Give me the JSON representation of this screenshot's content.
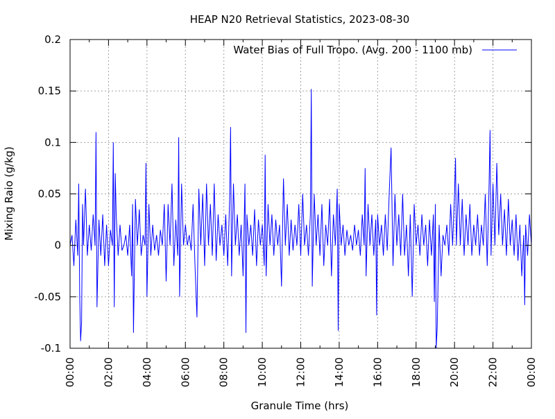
{
  "chart_data": {
    "type": "line",
    "title": "HEAP N20 Retrieval Statistics, 2023-08-30",
    "xlabel": "Granule Time (hrs)",
    "ylabel": "Mixing Raio (g/kg)",
    "xlim": [
      0,
      24
    ],
    "ylim": [
      -0.1,
      0.2
    ],
    "x_ticks": [
      {
        "value": 0,
        "label": "00:00"
      },
      {
        "value": 2,
        "label": "02:00"
      },
      {
        "value": 4,
        "label": "04:00"
      },
      {
        "value": 6,
        "label": "06:00"
      },
      {
        "value": 8,
        "label": "08:00"
      },
      {
        "value": 10,
        "label": "10:00"
      },
      {
        "value": 12,
        "label": "12:00"
      },
      {
        "value": 14,
        "label": "14:00"
      },
      {
        "value": 16,
        "label": "16:00"
      },
      {
        "value": 18,
        "label": "18:00"
      },
      {
        "value": 20,
        "label": "20:00"
      },
      {
        "value": 22,
        "label": "22:00"
      },
      {
        "value": 24,
        "label": "00:00"
      }
    ],
    "y_ticks": [
      {
        "value": -0.1,
        "label": "-0.1"
      },
      {
        "value": -0.05,
        "label": "-0.05"
      },
      {
        "value": 0,
        "label": "0"
      },
      {
        "value": 0.05,
        "label": "0.05"
      },
      {
        "value": 0.1,
        "label": "0.1"
      },
      {
        "value": 0.15,
        "label": "0.15"
      },
      {
        "value": 0.2,
        "label": "0.2"
      }
    ],
    "grid": true,
    "legend_position": "top-right",
    "series": [
      {
        "name": "Water Bias of Full Tropo. (Avg. 200 - 1100 mb)",
        "color": "#0000ff",
        "points": [
          [
            0.0,
            0.0
          ],
          [
            0.1,
            0.01
          ],
          [
            0.2,
            -0.02
          ],
          [
            0.3,
            0.025
          ],
          [
            0.4,
            -0.01
          ],
          [
            0.45,
            0.06
          ],
          [
            0.5,
            -0.05
          ],
          [
            0.55,
            -0.093
          ],
          [
            0.6,
            -0.075
          ],
          [
            0.65,
            0.04
          ],
          [
            0.7,
            0.0
          ],
          [
            0.8,
            0.055
          ],
          [
            0.9,
            -0.01
          ],
          [
            1.0,
            0.02
          ],
          [
            1.1,
            -0.005
          ],
          [
            1.2,
            0.03
          ],
          [
            1.3,
            0.0
          ],
          [
            1.35,
            0.11
          ],
          [
            1.4,
            -0.06
          ],
          [
            1.5,
            0.025
          ],
          [
            1.6,
            -0.01
          ],
          [
            1.7,
            0.03
          ],
          [
            1.8,
            -0.02
          ],
          [
            1.9,
            0.02
          ],
          [
            2.0,
            -0.02
          ],
          [
            2.1,
            0.015
          ],
          [
            2.2,
            0.0
          ],
          [
            2.25,
            0.1
          ],
          [
            2.3,
            -0.06
          ],
          [
            2.35,
            0.07
          ],
          [
            2.4,
            0.03
          ],
          [
            2.5,
            -0.01
          ],
          [
            2.6,
            0.02
          ],
          [
            2.7,
            -0.005
          ],
          [
            2.8,
            0.0
          ],
          [
            2.9,
            0.01
          ],
          [
            3.0,
            -0.01
          ],
          [
            3.1,
            0.02
          ],
          [
            3.2,
            -0.03
          ],
          [
            3.25,
            0.04
          ],
          [
            3.3,
            -0.085
          ],
          [
            3.4,
            0.045
          ],
          [
            3.5,
            0.0
          ],
          [
            3.6,
            0.035
          ],
          [
            3.7,
            -0.01
          ],
          [
            3.8,
            0.01
          ],
          [
            3.9,
            0.0
          ],
          [
            3.95,
            0.08
          ],
          [
            4.0,
            -0.05
          ],
          [
            4.1,
            0.04
          ],
          [
            4.2,
            -0.01
          ],
          [
            4.3,
            0.02
          ],
          [
            4.4,
            -0.005
          ],
          [
            4.5,
            0.01
          ],
          [
            4.6,
            -0.01
          ],
          [
            4.7,
            0.015
          ],
          [
            4.8,
            0.0
          ],
          [
            4.9,
            0.04
          ],
          [
            5.0,
            -0.035
          ],
          [
            5.1,
            0.04
          ],
          [
            5.2,
            0.0
          ],
          [
            5.3,
            0.06
          ],
          [
            5.4,
            -0.02
          ],
          [
            5.5,
            0.025
          ],
          [
            5.6,
            -0.01
          ],
          [
            5.65,
            0.105
          ],
          [
            5.7,
            -0.05
          ],
          [
            5.8,
            0.06
          ],
          [
            5.9,
            0.0
          ],
          [
            6.0,
            0.02
          ],
          [
            6.1,
            0.0
          ],
          [
            6.2,
            0.01
          ],
          [
            6.3,
            -0.005
          ],
          [
            6.4,
            0.04
          ],
          [
            6.5,
            -0.02
          ],
          [
            6.6,
            -0.07
          ],
          [
            6.7,
            0.055
          ],
          [
            6.8,
            0.0
          ],
          [
            6.9,
            0.05
          ],
          [
            7.0,
            -0.02
          ],
          [
            7.1,
            0.06
          ],
          [
            7.2,
            0.0
          ],
          [
            7.3,
            0.04
          ],
          [
            7.4,
            -0.01
          ],
          [
            7.5,
            0.06
          ],
          [
            7.6,
            -0.015
          ],
          [
            7.7,
            0.03
          ],
          [
            7.8,
            0.0
          ],
          [
            7.9,
            0.02
          ],
          [
            8.0,
            -0.01
          ],
          [
            8.1,
            0.03
          ],
          [
            8.2,
            -0.02
          ],
          [
            8.3,
            0.045
          ],
          [
            8.35,
            0.115
          ],
          [
            8.4,
            -0.03
          ],
          [
            8.5,
            0.06
          ],
          [
            8.6,
            0.0
          ],
          [
            8.7,
            0.03
          ],
          [
            8.8,
            -0.01
          ],
          [
            8.9,
            0.02
          ],
          [
            9.0,
            -0.03
          ],
          [
            9.1,
            0.06
          ],
          [
            9.15,
            -0.085
          ],
          [
            9.2,
            0.03
          ],
          [
            9.3,
            0.0
          ],
          [
            9.4,
            0.02
          ],
          [
            9.5,
            -0.01
          ],
          [
            9.6,
            0.035
          ],
          [
            9.7,
            -0.02
          ],
          [
            9.8,
            0.025
          ],
          [
            9.9,
            0.0
          ],
          [
            10.0,
            0.02
          ],
          [
            10.1,
            -0.02
          ],
          [
            10.15,
            0.088
          ],
          [
            10.2,
            -0.03
          ],
          [
            10.3,
            0.04
          ],
          [
            10.4,
            0.0
          ],
          [
            10.5,
            0.03
          ],
          [
            10.6,
            -0.01
          ],
          [
            10.7,
            0.025
          ],
          [
            10.8,
            0.0
          ],
          [
            10.9,
            0.02
          ],
          [
            11.0,
            -0.04
          ],
          [
            11.1,
            0.065
          ],
          [
            11.2,
            0.0
          ],
          [
            11.3,
            0.04
          ],
          [
            11.4,
            -0.01
          ],
          [
            11.5,
            0.025
          ],
          [
            11.6,
            -0.005
          ],
          [
            11.7,
            0.02
          ],
          [
            11.8,
            0.0
          ],
          [
            11.9,
            0.04
          ],
          [
            12.0,
            -0.01
          ],
          [
            12.1,
            0.05
          ],
          [
            12.2,
            0.0
          ],
          [
            12.3,
            0.02
          ],
          [
            12.4,
            -0.01
          ],
          [
            12.5,
            0.03
          ],
          [
            12.55,
            0.152
          ],
          [
            12.6,
            -0.04
          ],
          [
            12.7,
            0.05
          ],
          [
            12.8,
            0.0
          ],
          [
            12.9,
            0.03
          ],
          [
            13.0,
            -0.01
          ],
          [
            13.1,
            0.04
          ],
          [
            13.2,
            -0.02
          ],
          [
            13.3,
            0.02
          ],
          [
            13.4,
            0.0
          ],
          [
            13.5,
            0.045
          ],
          [
            13.6,
            -0.03
          ],
          [
            13.7,
            0.03
          ],
          [
            13.8,
            0.0
          ],
          [
            13.9,
            0.055
          ],
          [
            13.95,
            -0.083
          ],
          [
            14.0,
            0.04
          ],
          [
            14.1,
            0.0
          ],
          [
            14.2,
            0.02
          ],
          [
            14.3,
            -0.01
          ],
          [
            14.4,
            0.015
          ],
          [
            14.5,
            0.0
          ],
          [
            14.6,
            0.01
          ],
          [
            14.7,
            -0.005
          ],
          [
            14.8,
            0.02
          ],
          [
            14.9,
            0.0
          ],
          [
            15.0,
            0.015
          ],
          [
            15.1,
            -0.01
          ],
          [
            15.2,
            0.03
          ],
          [
            15.3,
            0.0
          ],
          [
            15.35,
            0.075
          ],
          [
            15.4,
            -0.03
          ],
          [
            15.5,
            0.04
          ],
          [
            15.6,
            0.0
          ],
          [
            15.7,
            0.03
          ],
          [
            15.8,
            -0.01
          ],
          [
            15.9,
            0.025
          ],
          [
            15.95,
            -0.068
          ],
          [
            16.0,
            0.03
          ],
          [
            16.1,
            0.0
          ],
          [
            16.2,
            0.02
          ],
          [
            16.3,
            -0.01
          ],
          [
            16.4,
            0.03
          ],
          [
            16.5,
            -0.005
          ],
          [
            16.6,
            0.05
          ],
          [
            16.7,
            0.095
          ],
          [
            16.8,
            -0.02
          ],
          [
            16.9,
            0.05
          ],
          [
            17.0,
            0.0
          ],
          [
            17.1,
            0.03
          ],
          [
            17.2,
            -0.01
          ],
          [
            17.3,
            0.05
          ],
          [
            17.4,
            -0.01
          ],
          [
            17.5,
            0.02
          ],
          [
            17.6,
            -0.03
          ],
          [
            17.7,
            0.03
          ],
          [
            17.8,
            -0.05
          ],
          [
            17.9,
            0.04
          ],
          [
            18.0,
            0.0
          ],
          [
            18.1,
            0.02
          ],
          [
            18.2,
            -0.01
          ],
          [
            18.3,
            0.03
          ],
          [
            18.4,
            0.0
          ],
          [
            18.5,
            0.02
          ],
          [
            18.6,
            -0.02
          ],
          [
            18.7,
            0.025
          ],
          [
            18.8,
            -0.01
          ],
          [
            18.9,
            0.03
          ],
          [
            18.95,
            -0.055
          ],
          [
            19.0,
            0.04
          ],
          [
            19.05,
            -0.1
          ],
          [
            19.1,
            -0.08
          ],
          [
            19.2,
            0.02
          ],
          [
            19.3,
            -0.03
          ],
          [
            19.4,
            0.01
          ],
          [
            19.5,
            0.0
          ],
          [
            19.6,
            0.02
          ],
          [
            19.7,
            -0.01
          ],
          [
            19.8,
            0.04
          ],
          [
            19.9,
            0.0
          ],
          [
            20.0,
            0.05
          ],
          [
            20.05,
            0.085
          ],
          [
            20.1,
            0.0
          ],
          [
            20.2,
            0.06
          ],
          [
            20.3,
            0.0
          ],
          [
            20.4,
            0.045
          ],
          [
            20.5,
            -0.01
          ],
          [
            20.6,
            0.03
          ],
          [
            20.7,
            0.0
          ],
          [
            20.8,
            0.04
          ],
          [
            20.9,
            -0.01
          ],
          [
            21.0,
            0.02
          ],
          [
            21.1,
            0.0
          ],
          [
            21.2,
            0.03
          ],
          [
            21.3,
            -0.01
          ],
          [
            21.4,
            0.02
          ],
          [
            21.5,
            0.0
          ],
          [
            21.6,
            0.05
          ],
          [
            21.7,
            -0.02
          ],
          [
            21.8,
            0.06
          ],
          [
            21.85,
            0.112
          ],
          [
            21.9,
            -0.01
          ],
          [
            22.0,
            0.06
          ],
          [
            22.1,
            0.0
          ],
          [
            22.2,
            0.08
          ],
          [
            22.3,
            0.01
          ],
          [
            22.4,
            0.05
          ],
          [
            22.5,
            0.0
          ],
          [
            22.6,
            0.035
          ],
          [
            22.7,
            -0.01
          ],
          [
            22.8,
            0.045
          ],
          [
            22.9,
            0.0
          ],
          [
            23.0,
            0.025
          ],
          [
            23.1,
            -0.01
          ],
          [
            23.2,
            0.03
          ],
          [
            23.3,
            -0.015
          ],
          [
            23.4,
            0.02
          ],
          [
            23.5,
            -0.03
          ],
          [
            23.6,
            0.01
          ],
          [
            23.65,
            -0.058
          ],
          [
            23.7,
            0.02
          ],
          [
            23.8,
            -0.01
          ],
          [
            23.9,
            0.03
          ],
          [
            24.0,
            0.0
          ]
        ]
      }
    ]
  }
}
